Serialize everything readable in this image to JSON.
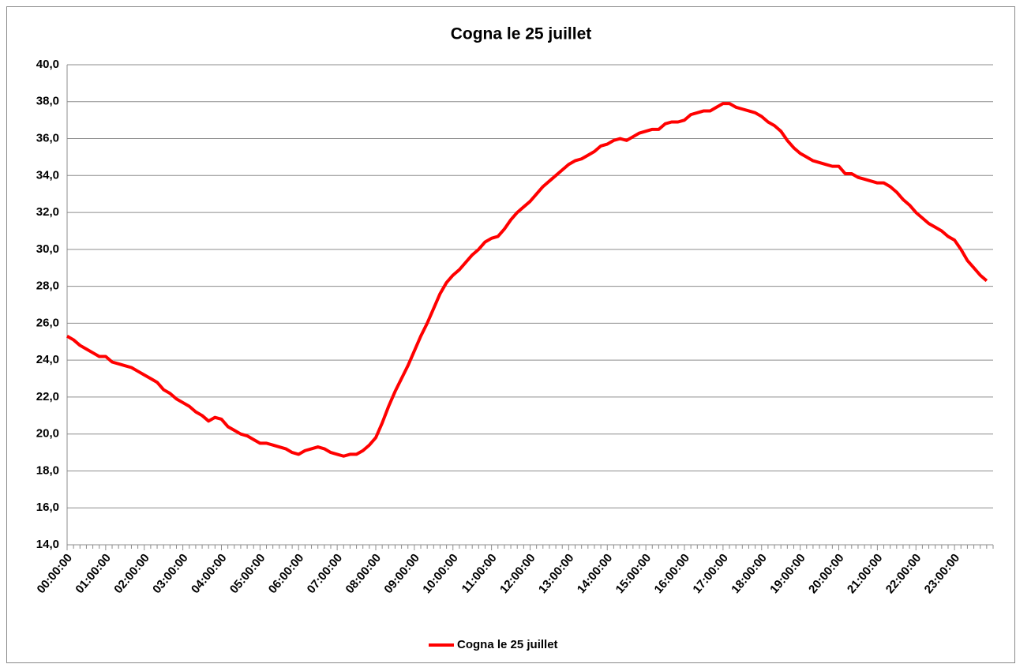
{
  "chart_data": {
    "type": "line",
    "title": "Cogna le 25 juillet",
    "categories": [
      "00:00:00",
      null,
      null,
      null,
      null,
      null,
      "01:00:00",
      null,
      null,
      null,
      null,
      null,
      "02:00:00",
      null,
      null,
      null,
      null,
      null,
      "03:00:00",
      null,
      null,
      null,
      null,
      null,
      "04:00:00",
      null,
      null,
      null,
      null,
      null,
      "05:00:00",
      null,
      null,
      null,
      null,
      null,
      "06:00:00",
      null,
      null,
      null,
      null,
      null,
      "07:00:00",
      null,
      null,
      null,
      null,
      null,
      "08:00:00",
      null,
      null,
      null,
      null,
      null,
      "09:00:00",
      null,
      null,
      null,
      null,
      null,
      "10:00:00",
      null,
      null,
      null,
      null,
      null,
      "11:00:00",
      null,
      null,
      null,
      null,
      null,
      "12:00:00",
      null,
      null,
      null,
      null,
      null,
      "13:00:00",
      null,
      null,
      null,
      null,
      null,
      "14:00:00",
      null,
      null,
      null,
      null,
      null,
      "15:00:00",
      null,
      null,
      null,
      null,
      null,
      "16:00:00",
      null,
      null,
      null,
      null,
      null,
      "17:00:00",
      null,
      null,
      null,
      null,
      null,
      "18:00:00",
      null,
      null,
      null,
      null,
      null,
      "19:00:00",
      null,
      null,
      null,
      null,
      null,
      "20:00:00",
      null,
      null,
      null,
      null,
      null,
      "21:00:00",
      null,
      null,
      null,
      null,
      null,
      "22:00:00",
      null,
      null,
      null,
      null,
      null,
      "23:00:00",
      null,
      null,
      null,
      null,
      null
    ],
    "series": [
      {
        "name": "Cogna le 25 juillet",
        "color": "#ff0000",
        "values": [
          25.3,
          25.1,
          24.8,
          24.6,
          24.4,
          24.2,
          24.2,
          23.9,
          23.8,
          23.7,
          23.6,
          23.4,
          23.2,
          23.0,
          22.8,
          22.4,
          22.2,
          21.9,
          21.7,
          21.5,
          21.2,
          21.0,
          20.7,
          20.9,
          20.8,
          20.4,
          20.2,
          20.0,
          19.9,
          19.7,
          19.5,
          19.5,
          19.4,
          19.3,
          19.2,
          19.0,
          18.9,
          19.1,
          19.2,
          19.3,
          19.2,
          19.0,
          18.9,
          18.8,
          18.9,
          18.9,
          19.1,
          19.4,
          19.8,
          20.6,
          21.5,
          22.3,
          23.0,
          23.7,
          24.5,
          25.3,
          26.0,
          26.8,
          27.6,
          28.2,
          28.6,
          28.9,
          29.3,
          29.7,
          30.0,
          30.4,
          30.6,
          30.7,
          31.1,
          31.6,
          32.0,
          32.3,
          32.6,
          33.0,
          33.4,
          33.7,
          34.0,
          34.3,
          34.6,
          34.8,
          34.9,
          35.1,
          35.3,
          35.6,
          35.7,
          35.9,
          36.0,
          35.9,
          36.1,
          36.3,
          36.4,
          36.5,
          36.5,
          36.8,
          36.9,
          36.9,
          37.0,
          37.3,
          37.4,
          37.5,
          37.5,
          37.7,
          37.9,
          37.9,
          37.7,
          37.6,
          37.5,
          37.4,
          37.2,
          36.9,
          36.7,
          36.4,
          35.9,
          35.5,
          35.2,
          35.0,
          34.8,
          34.7,
          34.6,
          34.5,
          34.5,
          34.1,
          34.1,
          33.9,
          33.8,
          33.7,
          33.6,
          33.6,
          33.4,
          33.1,
          32.7,
          32.4,
          32.0,
          31.7,
          31.4,
          31.2,
          31.0,
          30.7,
          30.5,
          30.0,
          29.4,
          29.0,
          28.6,
          28.3
        ]
      }
    ],
    "ylim": [
      14,
      40
    ],
    "yticks": [
      {
        "value": 14,
        "label": "14,0"
      },
      {
        "value": 16,
        "label": "16,0"
      },
      {
        "value": 18,
        "label": "18,0"
      },
      {
        "value": 20,
        "label": "20,0"
      },
      {
        "value": 22,
        "label": "22,0"
      },
      {
        "value": 24,
        "label": "24,0"
      },
      {
        "value": 26,
        "label": "26,0"
      },
      {
        "value": 28,
        "label": "28,0"
      },
      {
        "value": 30,
        "label": "30,0"
      },
      {
        "value": 32,
        "label": "32,0"
      },
      {
        "value": 34,
        "label": "34,0"
      },
      {
        "value": 36,
        "label": "36,0"
      },
      {
        "value": 38,
        "label": "38,0"
      },
      {
        "value": 40,
        "label": "40,0"
      }
    ],
    "grid": true,
    "legend": "bottom"
  }
}
